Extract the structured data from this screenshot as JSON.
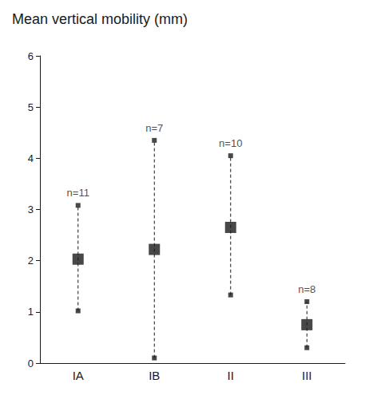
{
  "chart_data": {
    "type": "errorbar",
    "title": "Mean vertical mobility (mm)",
    "categories": [
      "IA",
      "IB",
      "II",
      "III"
    ],
    "values": [
      2.03,
      2.22,
      2.65,
      0.75
    ],
    "ci_lower": [
      1.02,
      0.1,
      1.33,
      0.3
    ],
    "ci_upper": [
      3.08,
      4.35,
      4.05,
      1.2
    ],
    "n_labels": [
      "n=11",
      "n=7",
      "n=10",
      "n=8"
    ],
    "color": "#1a1a1a",
    "ylim": [
      0,
      6
    ],
    "yticks": [
      0,
      1,
      2,
      3,
      4,
      5,
      6
    ],
    "grid": false
  }
}
